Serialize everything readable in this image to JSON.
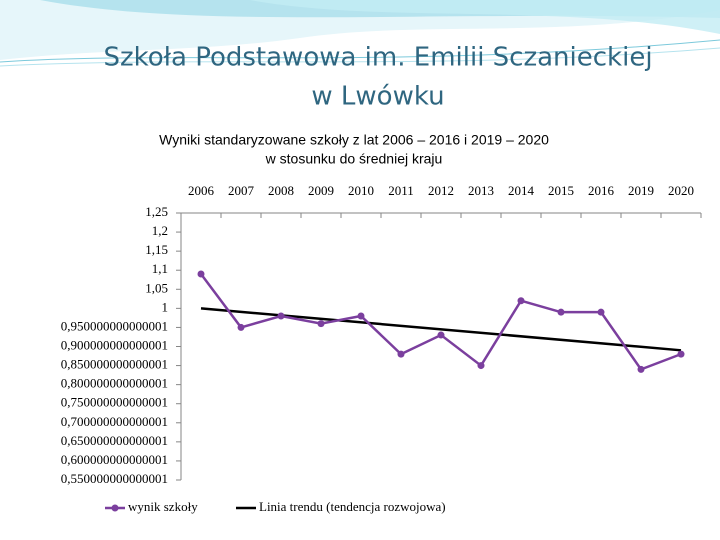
{
  "slide": {
    "title": [
      "Szkoła Podstawowa im. Emilii Sczanieckiej",
      "w Lwówku"
    ]
  },
  "chart_data": {
    "type": "line",
    "title": [
      "Wyniki  standaryzowane szkoły z lat 2006 – 2016 i 2019 – 2020",
      "w stosunku do średniej kraju"
    ],
    "categories": [
      "2006",
      "2007",
      "2008",
      "2009",
      "2010",
      "2011",
      "2012",
      "2013",
      "2014",
      "2015",
      "2016",
      "2019",
      "2020"
    ],
    "series": [
      {
        "name": "wynik szkoły",
        "color": "#7b3f9e",
        "values": [
          1.09,
          0.95,
          0.98,
          0.96,
          0.98,
          0.88,
          0.93,
          0.85,
          1.02,
          0.99,
          0.99,
          0.84,
          0.88
        ]
      }
    ],
    "trend": {
      "name": "Linia trendu (tendencja rozwojowa)",
      "color": "#000000",
      "values": [
        1.0,
        0.89
      ]
    },
    "ylim": [
      0.55,
      1.25
    ],
    "yticks": [
      {
        "value": 1.25,
        "label": "1,25"
      },
      {
        "value": 1.2,
        "label": "1,2"
      },
      {
        "value": 1.15,
        "label": "1,15"
      },
      {
        "value": 1.1,
        "label": "1,1"
      },
      {
        "value": 1.05,
        "label": "1,05"
      },
      {
        "value": 1,
        "label": "1"
      },
      {
        "value": 0.95,
        "label": "0,950000000000001"
      },
      {
        "value": 0.9,
        "label": "0,900000000000001"
      },
      {
        "value": 0.85,
        "label": "0,850000000000001"
      },
      {
        "value": 0.8,
        "label": "0,800000000000001"
      },
      {
        "value": 0.75,
        "label": "0,750000000000001"
      },
      {
        "value": 0.7,
        "label": "0,700000000000001"
      },
      {
        "value": 0.65,
        "label": "0,650000000000001"
      },
      {
        "value": 0.6,
        "label": "0,600000000000001"
      },
      {
        "value": 0.55,
        "label": "0,550000000000001"
      }
    ],
    "grid": false,
    "legend": "bottom"
  }
}
